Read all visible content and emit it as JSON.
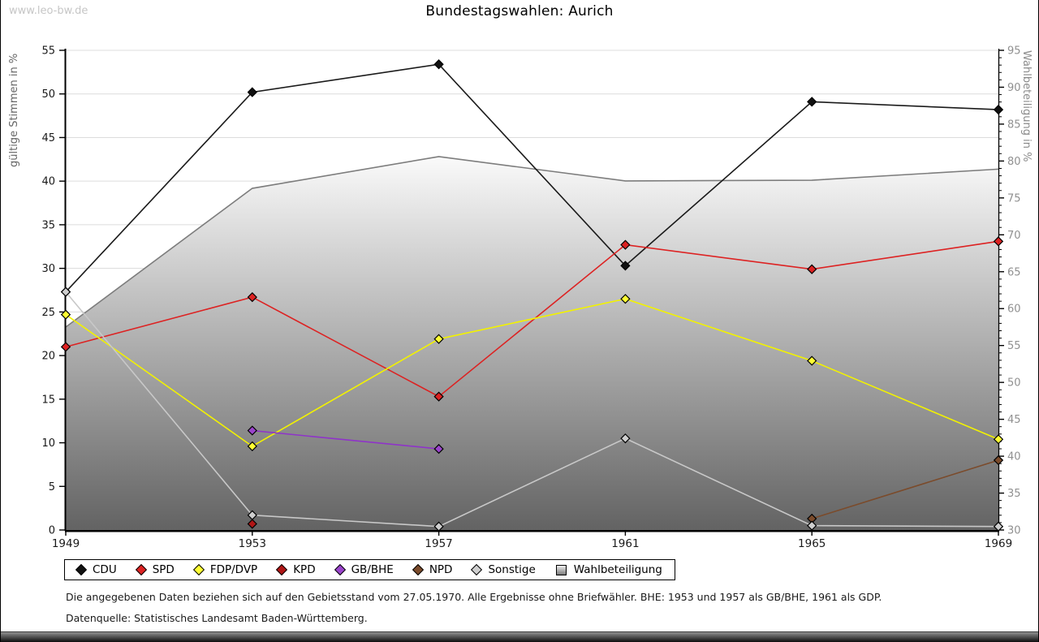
{
  "page": {
    "watermark": "www.leo-bw.de",
    "title": "Bundestagswahlen: Aurich",
    "footnote_gebietsstand": "Die angegebenen Daten beziehen sich auf den Gebietsstand vom 27.05.1970. Alle Ergebnisse ohne Briefwähler. BHE: 1953 und 1957 als GB/BHE, 1961 als GDP.",
    "footnote_datenquelle": "Datenquelle: Statistisches Landesamt Baden-Württemberg."
  },
  "chart_data": {
    "type": "line",
    "title": "Bundestagswahlen: Aurich",
    "x": [
      1949,
      1953,
      1957,
      1961,
      1965,
      1969
    ],
    "ylabel_left": "gültige Stimmen in %",
    "ylabel_right": "Wahlbeteiligung in %",
    "ylim_left": [
      0,
      55
    ],
    "ylim_right": [
      30,
      95
    ],
    "ytick_step": 5,
    "grid": true,
    "legend_position": "bottom",
    "colors": {
      "grid": "#dcdcdc",
      "axis": "#000000",
      "tick_label_left": "#1a1a1a",
      "tick_label_right": "#909090",
      "area_border": "#7d7d7d",
      "area_top": "#fafafa",
      "area_bottom": "#636363"
    },
    "series": [
      {
        "name": "CDU",
        "axis": "left",
        "style": "line",
        "color": "#1a1a1a",
        "marker": "#111111",
        "values": [
          27.3,
          50.2,
          53.4,
          30.3,
          49.1,
          48.2
        ]
      },
      {
        "name": "SPD",
        "axis": "left",
        "style": "line",
        "color": "#dd2222",
        "marker": "#dd2222",
        "values": [
          21.0,
          26.7,
          15.3,
          32.7,
          29.9,
          33.1
        ]
      },
      {
        "name": "FDP/DVP",
        "axis": "left",
        "style": "line",
        "color": "#f2f200",
        "marker": "#ffff33",
        "values": [
          24.7,
          9.6,
          21.9,
          26.5,
          19.4,
          10.4
        ]
      },
      {
        "name": "KPD",
        "axis": "left",
        "style": "line",
        "color": "#b01515",
        "marker": "#b01515",
        "values": [
          null,
          0.7,
          null,
          null,
          null,
          null
        ]
      },
      {
        "name": "GB/BHE",
        "axis": "left",
        "style": "line",
        "color": "#8f33c9",
        "marker": "#9b44cc",
        "values": [
          null,
          11.4,
          9.3,
          null,
          null,
          null
        ]
      },
      {
        "name": "NPD",
        "axis": "left",
        "style": "line",
        "color": "#7b4b2b",
        "marker": "#7b4b2b",
        "values": [
          null,
          null,
          null,
          null,
          1.3,
          8.0
        ]
      },
      {
        "name": "Sonstige",
        "axis": "left",
        "style": "line",
        "color": "#c8c8c8",
        "marker": "#cfcfcf",
        "values": [
          27.3,
          1.7,
          0.4,
          10.5,
          0.5,
          0.4
        ]
      },
      {
        "name": "Wahlbeteiligung",
        "axis": "right",
        "style": "area",
        "color": "#7d7d7d",
        "marker": null,
        "values": [
          57.5,
          76.3,
          80.6,
          77.3,
          77.4,
          78.9
        ]
      }
    ]
  }
}
